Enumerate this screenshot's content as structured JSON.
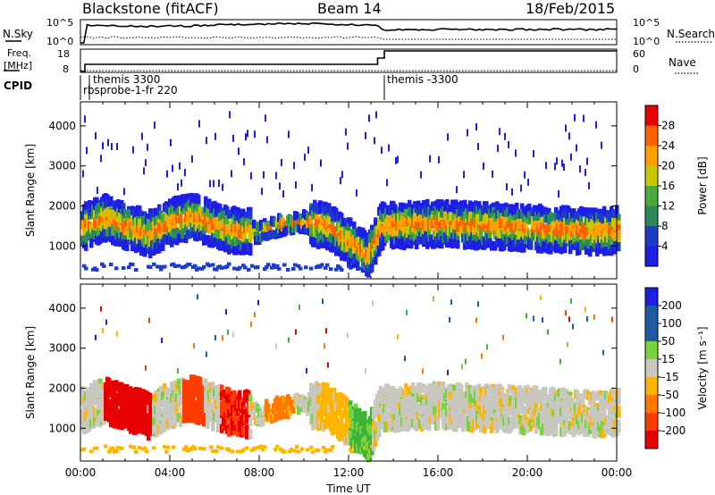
{
  "header": {
    "station": "Blackstone (fitACF)",
    "beam": "Beam 14",
    "date": "18/Feb/2015"
  },
  "top_panels": {
    "nsky_label": "N.Sky",
    "nsky_ticks": [
      "10^5",
      "10^0"
    ],
    "nsearch_label": "N.Search",
    "nsearch_ticks": [
      "10^5",
      "10^0"
    ],
    "freq_label_1": "Freq.",
    "freq_label_2": "[MHz]",
    "freq_ticks": [
      "18",
      "8"
    ],
    "nave_label": "Nave",
    "nave_ticks": [
      "60",
      "0"
    ],
    "cpid_label": "CPID",
    "cpid_events": [
      {
        "label": "themis 3300",
        "time": 0.5
      },
      {
        "label": "rbsprobe-1-fr 220",
        "time": 0.1
      },
      {
        "label": "themis -3300",
        "time": 13.4
      }
    ]
  },
  "chart_data": [
    {
      "type": "heatmap",
      "name": "power",
      "ylabel": "Slant Range [km]",
      "xlim": [
        0,
        24
      ],
      "ylim": [
        180,
        4600
      ],
      "yticks": [
        "1000",
        "2000",
        "3000",
        "4000"
      ],
      "colorbar": {
        "label": "Power [dB]",
        "ticks": [
          "28",
          "24",
          "20",
          "16",
          "12",
          "8",
          "4"
        ],
        "range": [
          0,
          30
        ]
      },
      "bands": [
        {
          "center_at": [
            [
              0,
              1450
            ],
            [
              1,
              1700
            ],
            [
              2,
              1500
            ],
            [
              3,
              1300
            ],
            [
              4,
              1600
            ],
            [
              5,
              1750
            ],
            [
              6,
              1500
            ],
            [
              7,
              1350
            ],
            [
              8,
              1350
            ],
            [
              9,
              1550
            ],
            [
              10,
              1600
            ],
            [
              11,
              1500
            ],
            [
              12,
              1100
            ],
            [
              12.8,
              750
            ],
            [
              13.4,
              1500
            ],
            [
              16,
              1550
            ],
            [
              20,
              1450
            ],
            [
              23,
              1350
            ],
            [
              24,
              1400
            ]
          ],
          "peak_db": 27
        }
      ]
    },
    {
      "type": "heatmap",
      "name": "velocity",
      "ylabel": "Slant Range [km]",
      "xlabel": "Time UT",
      "xlim": [
        0,
        24
      ],
      "ylim": [
        180,
        4600
      ],
      "xticks": [
        "00:00",
        "04:00",
        "08:00",
        "12:00",
        "16:00",
        "20:00",
        "00:00"
      ],
      "yticks": [
        "1000",
        "2000",
        "3000",
        "4000"
      ],
      "colorbar": {
        "label": "Velocity [m s⁻¹]",
        "ticks": [
          "200",
          "100",
          "50",
          "15",
          "-15",
          "-50",
          "-100",
          "-200"
        ],
        "range": [
          -250,
          250
        ]
      },
      "regions": [
        {
          "t0": 0.0,
          "t1": 1.0,
          "v": 0
        },
        {
          "t0": 1.0,
          "t1": 3.2,
          "v": -200
        },
        {
          "t0": 3.2,
          "t1": 4.5,
          "v": 0
        },
        {
          "t0": 4.5,
          "t1": 5.5,
          "v": -120
        },
        {
          "t0": 5.5,
          "t1": 6.2,
          "v": 0
        },
        {
          "t0": 6.2,
          "t1": 7.5,
          "v": -150
        },
        {
          "t0": 7.5,
          "t1": 8.2,
          "v": 0
        },
        {
          "t0": 8.2,
          "t1": 9.5,
          "v": -60
        },
        {
          "t0": 9.5,
          "t1": 10.5,
          "v": 0
        },
        {
          "t0": 10.5,
          "t1": 12.0,
          "v": -30
        },
        {
          "t0": 12.0,
          "t1": 13.0,
          "v": 40
        },
        {
          "t0": 13.4,
          "t1": 24.0,
          "v": 0
        }
      ]
    }
  ],
  "colors": {
    "axis": "#000000",
    "ground_scatter": "#c8c8c0"
  }
}
